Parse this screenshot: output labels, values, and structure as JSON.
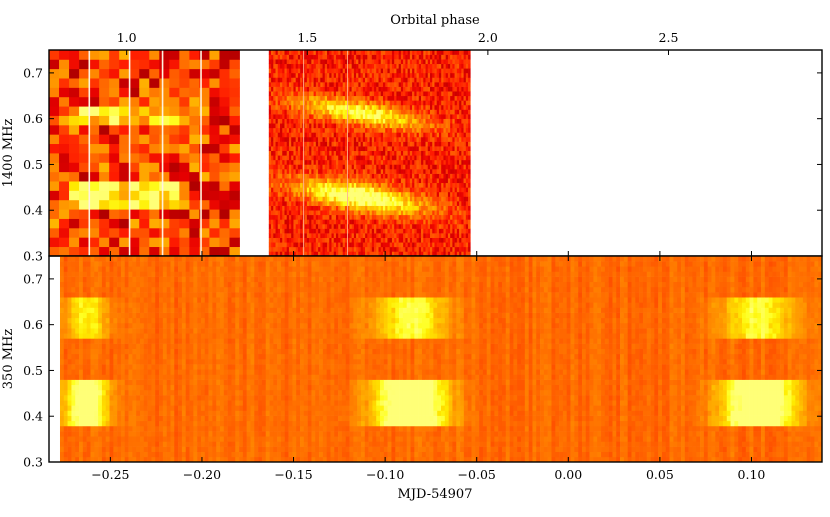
{
  "chart_data": [
    {
      "type": "heatmap",
      "panel": "top",
      "ylabel": "1400 MHz",
      "top_xlabel": "Orbital phase",
      "top_xlim": [
        0.785,
        2.925
      ],
      "top_xticks": [
        "1.0",
        "1.5",
        "2.0",
        "2.5"
      ],
      "top_xtick_values": [
        1.0,
        1.5,
        2.0,
        2.5
      ],
      "ylim": [
        0.3,
        0.75
      ],
      "yticks": [
        "0.3",
        "0.4",
        "0.5",
        "0.6",
        "0.7"
      ],
      "ytick_values": [
        0.3,
        0.4,
        0.5,
        0.6,
        0.7
      ],
      "x_data_range": [
        -0.2835,
        0.1385
      ],
      "observation_spans": [
        [
          -0.2835,
          -0.1795
        ],
        [
          -0.1635,
          -0.0535
        ]
      ],
      "bright_bands_phase": [
        [
          0.42,
          0.46
        ],
        [
          0.59,
          0.63
        ]
      ],
      "colormap": "hot",
      "colors": {
        "low": "#b40000",
        "mid": "#ff3c00",
        "high": "#ffff80"
      }
    },
    {
      "type": "heatmap",
      "panel": "bottom",
      "ylabel": "350 MHz",
      "xlabel": "MJD-54907",
      "xlim": [
        -0.2835,
        0.1385
      ],
      "xticks": [
        "−0.25",
        "−0.20",
        "−0.15",
        "−0.10",
        "−0.05",
        "0.00",
        "0.05",
        "0.10"
      ],
      "xtick_values": [
        -0.25,
        -0.2,
        -0.15,
        -0.1,
        -0.05,
        0.0,
        0.05,
        0.1
      ],
      "ylim": [
        0.3,
        0.75
      ],
      "yticks": [
        "0.3",
        "0.4",
        "0.5",
        "0.6",
        "0.7"
      ],
      "ytick_values": [
        0.3,
        0.4,
        0.5,
        0.6,
        0.7
      ],
      "observation_span": [
        -0.2775,
        0.1385
      ],
      "pulse_centers_mjd": [
        -0.263,
        -0.086,
        0.104
      ],
      "bright_bands_phase": [
        [
          0.38,
          0.48
        ],
        [
          0.57,
          0.67
        ]
      ],
      "colormap": "hot",
      "colors": {
        "low": "#ff3c00",
        "high": "#ffff60"
      }
    }
  ]
}
